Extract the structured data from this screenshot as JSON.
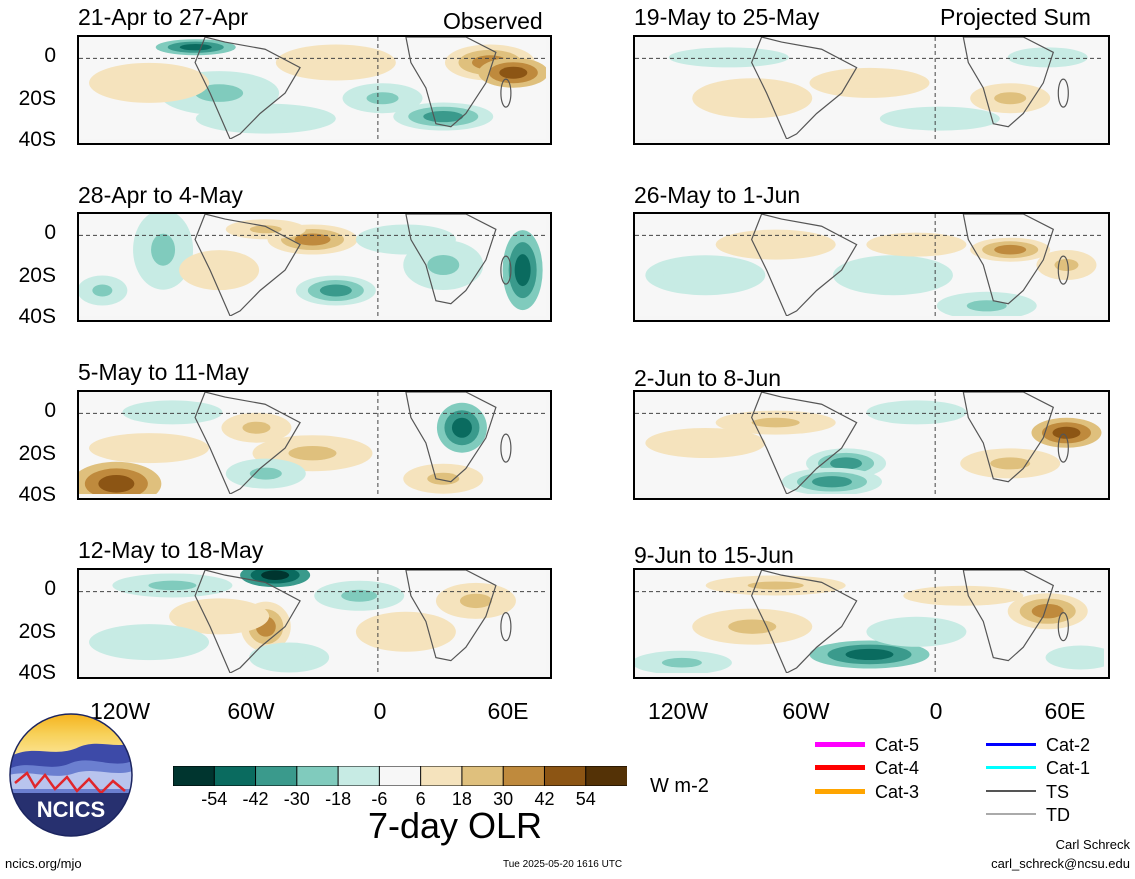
{
  "observed_label": "Observed",
  "projected_label": "Projected Sum",
  "panels_left": [
    {
      "title": "21-Apr to 27-Apr"
    },
    {
      "title": "28-Apr to 4-May"
    },
    {
      "title": "5-May to 11-May"
    },
    {
      "title": "12-May to 18-May"
    }
  ],
  "panels_right": [
    {
      "title": "19-May to 25-May"
    },
    {
      "title": "26-May to 1-Jun"
    },
    {
      "title": "2-Jun to 8-Jun"
    },
    {
      "title": "9-Jun to 15-Jun"
    }
  ],
  "y_ticks": [
    "0",
    "20S",
    "40S"
  ],
  "x_ticks": [
    "120W",
    "60W",
    "0",
    "60E"
  ],
  "colorbar": {
    "labels": [
      "-54",
      "-42",
      "-30",
      "-18",
      "-6",
      "6",
      "18",
      "30",
      "42",
      "54"
    ],
    "colors": [
      "#00352f",
      "#0a6b5f",
      "#3a9a8c",
      "#80cbbd",
      "#c7ebe4",
      "#f7f7f7",
      "#f5e3bd",
      "#dfc07d",
      "#bf8a3d",
      "#8c5514",
      "#543206"
    ],
    "units": "W m-2",
    "title": "7-day OLR"
  },
  "storm_legend": [
    {
      "label": "Cat-5",
      "color": "#ff00ff"
    },
    {
      "label": "Cat-4",
      "color": "#ff0000"
    },
    {
      "label": "Cat-3",
      "color": "#ffa500"
    },
    {
      "label": "Cat-2",
      "color": "#0000ff"
    },
    {
      "label": "Cat-1",
      "color": "#00ffff"
    },
    {
      "label": "TS",
      "color": "#555555"
    },
    {
      "label": "TD",
      "color": "#aaaaaa"
    }
  ],
  "logo_text": "NCICS",
  "footer": {
    "site": "ncics.org/mjo",
    "timestamp": "Tue 2025-05-20 1616 UTC",
    "author": "Carl Schreck",
    "email": "carl_schreck@ncsu.edu"
  }
}
